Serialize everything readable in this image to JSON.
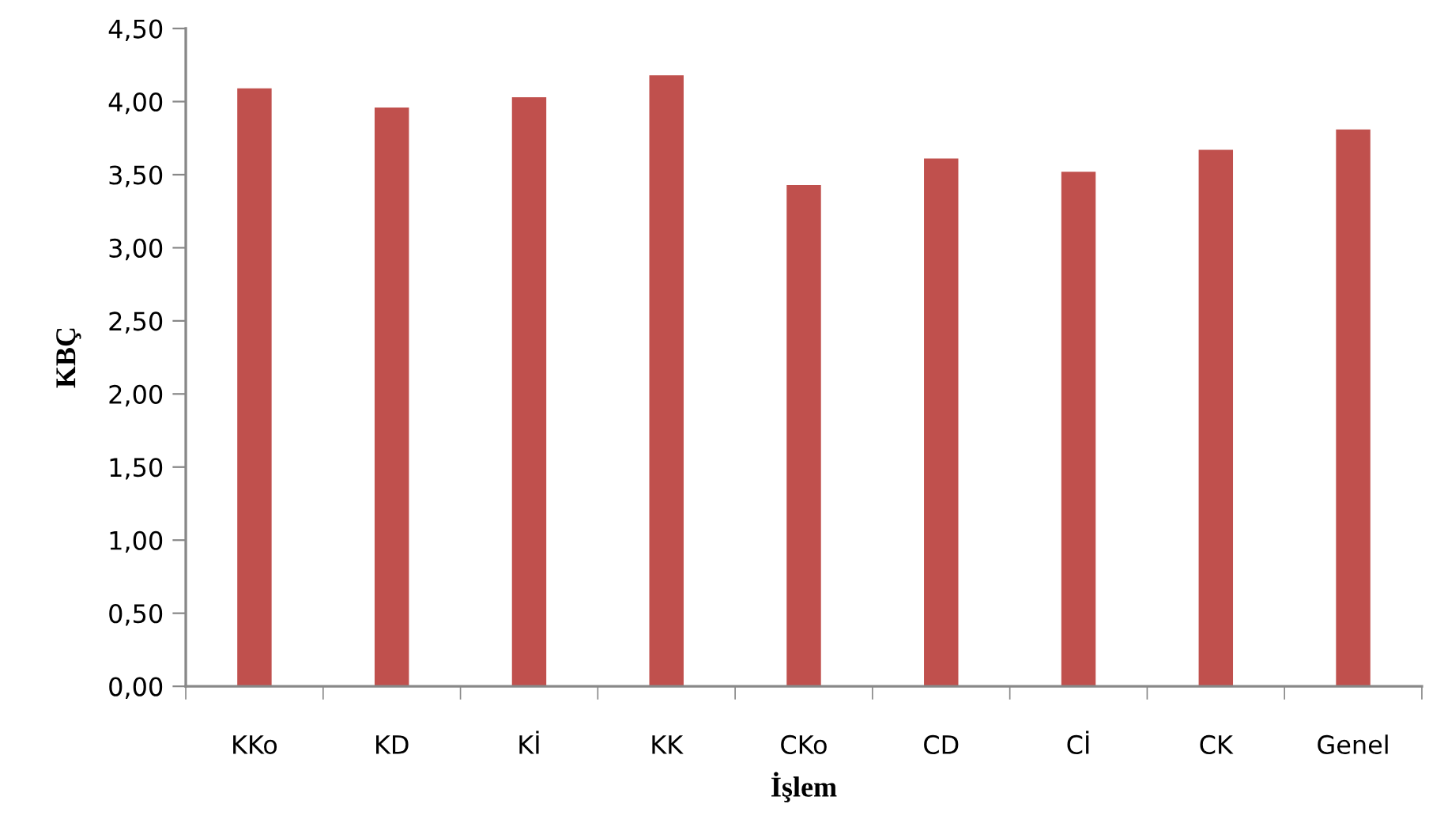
{
  "chart_data": {
    "type": "bar",
    "xlabel": "İşlem",
    "ylabel": "KBÇ",
    "categories": [
      "KKo",
      "KD",
      "Kİ",
      "KK",
      "CKo",
      "CD",
      "Cİ",
      "CK",
      "Genel"
    ],
    "values": [
      4.09,
      3.96,
      4.03,
      4.18,
      3.43,
      3.61,
      3.52,
      3.67,
      3.81
    ],
    "color": "#c0504d",
    "ylim": [
      0,
      4.5
    ],
    "yticks": [
      {
        "value": 0,
        "label": "0,00"
      },
      {
        "value": 0.5,
        "label": "0,50"
      },
      {
        "value": 1,
        "label": "1,00"
      },
      {
        "value": 1.5,
        "label": "1,50"
      },
      {
        "value": 2,
        "label": "2,00"
      },
      {
        "value": 2.5,
        "label": "2,50"
      },
      {
        "value": 3,
        "label": "3,00"
      },
      {
        "value": 3.5,
        "label": "3,50"
      },
      {
        "value": 4,
        "label": "4,00"
      },
      {
        "value": 4.5,
        "label": "4,50"
      }
    ],
    "grid": false,
    "legend": false
  }
}
